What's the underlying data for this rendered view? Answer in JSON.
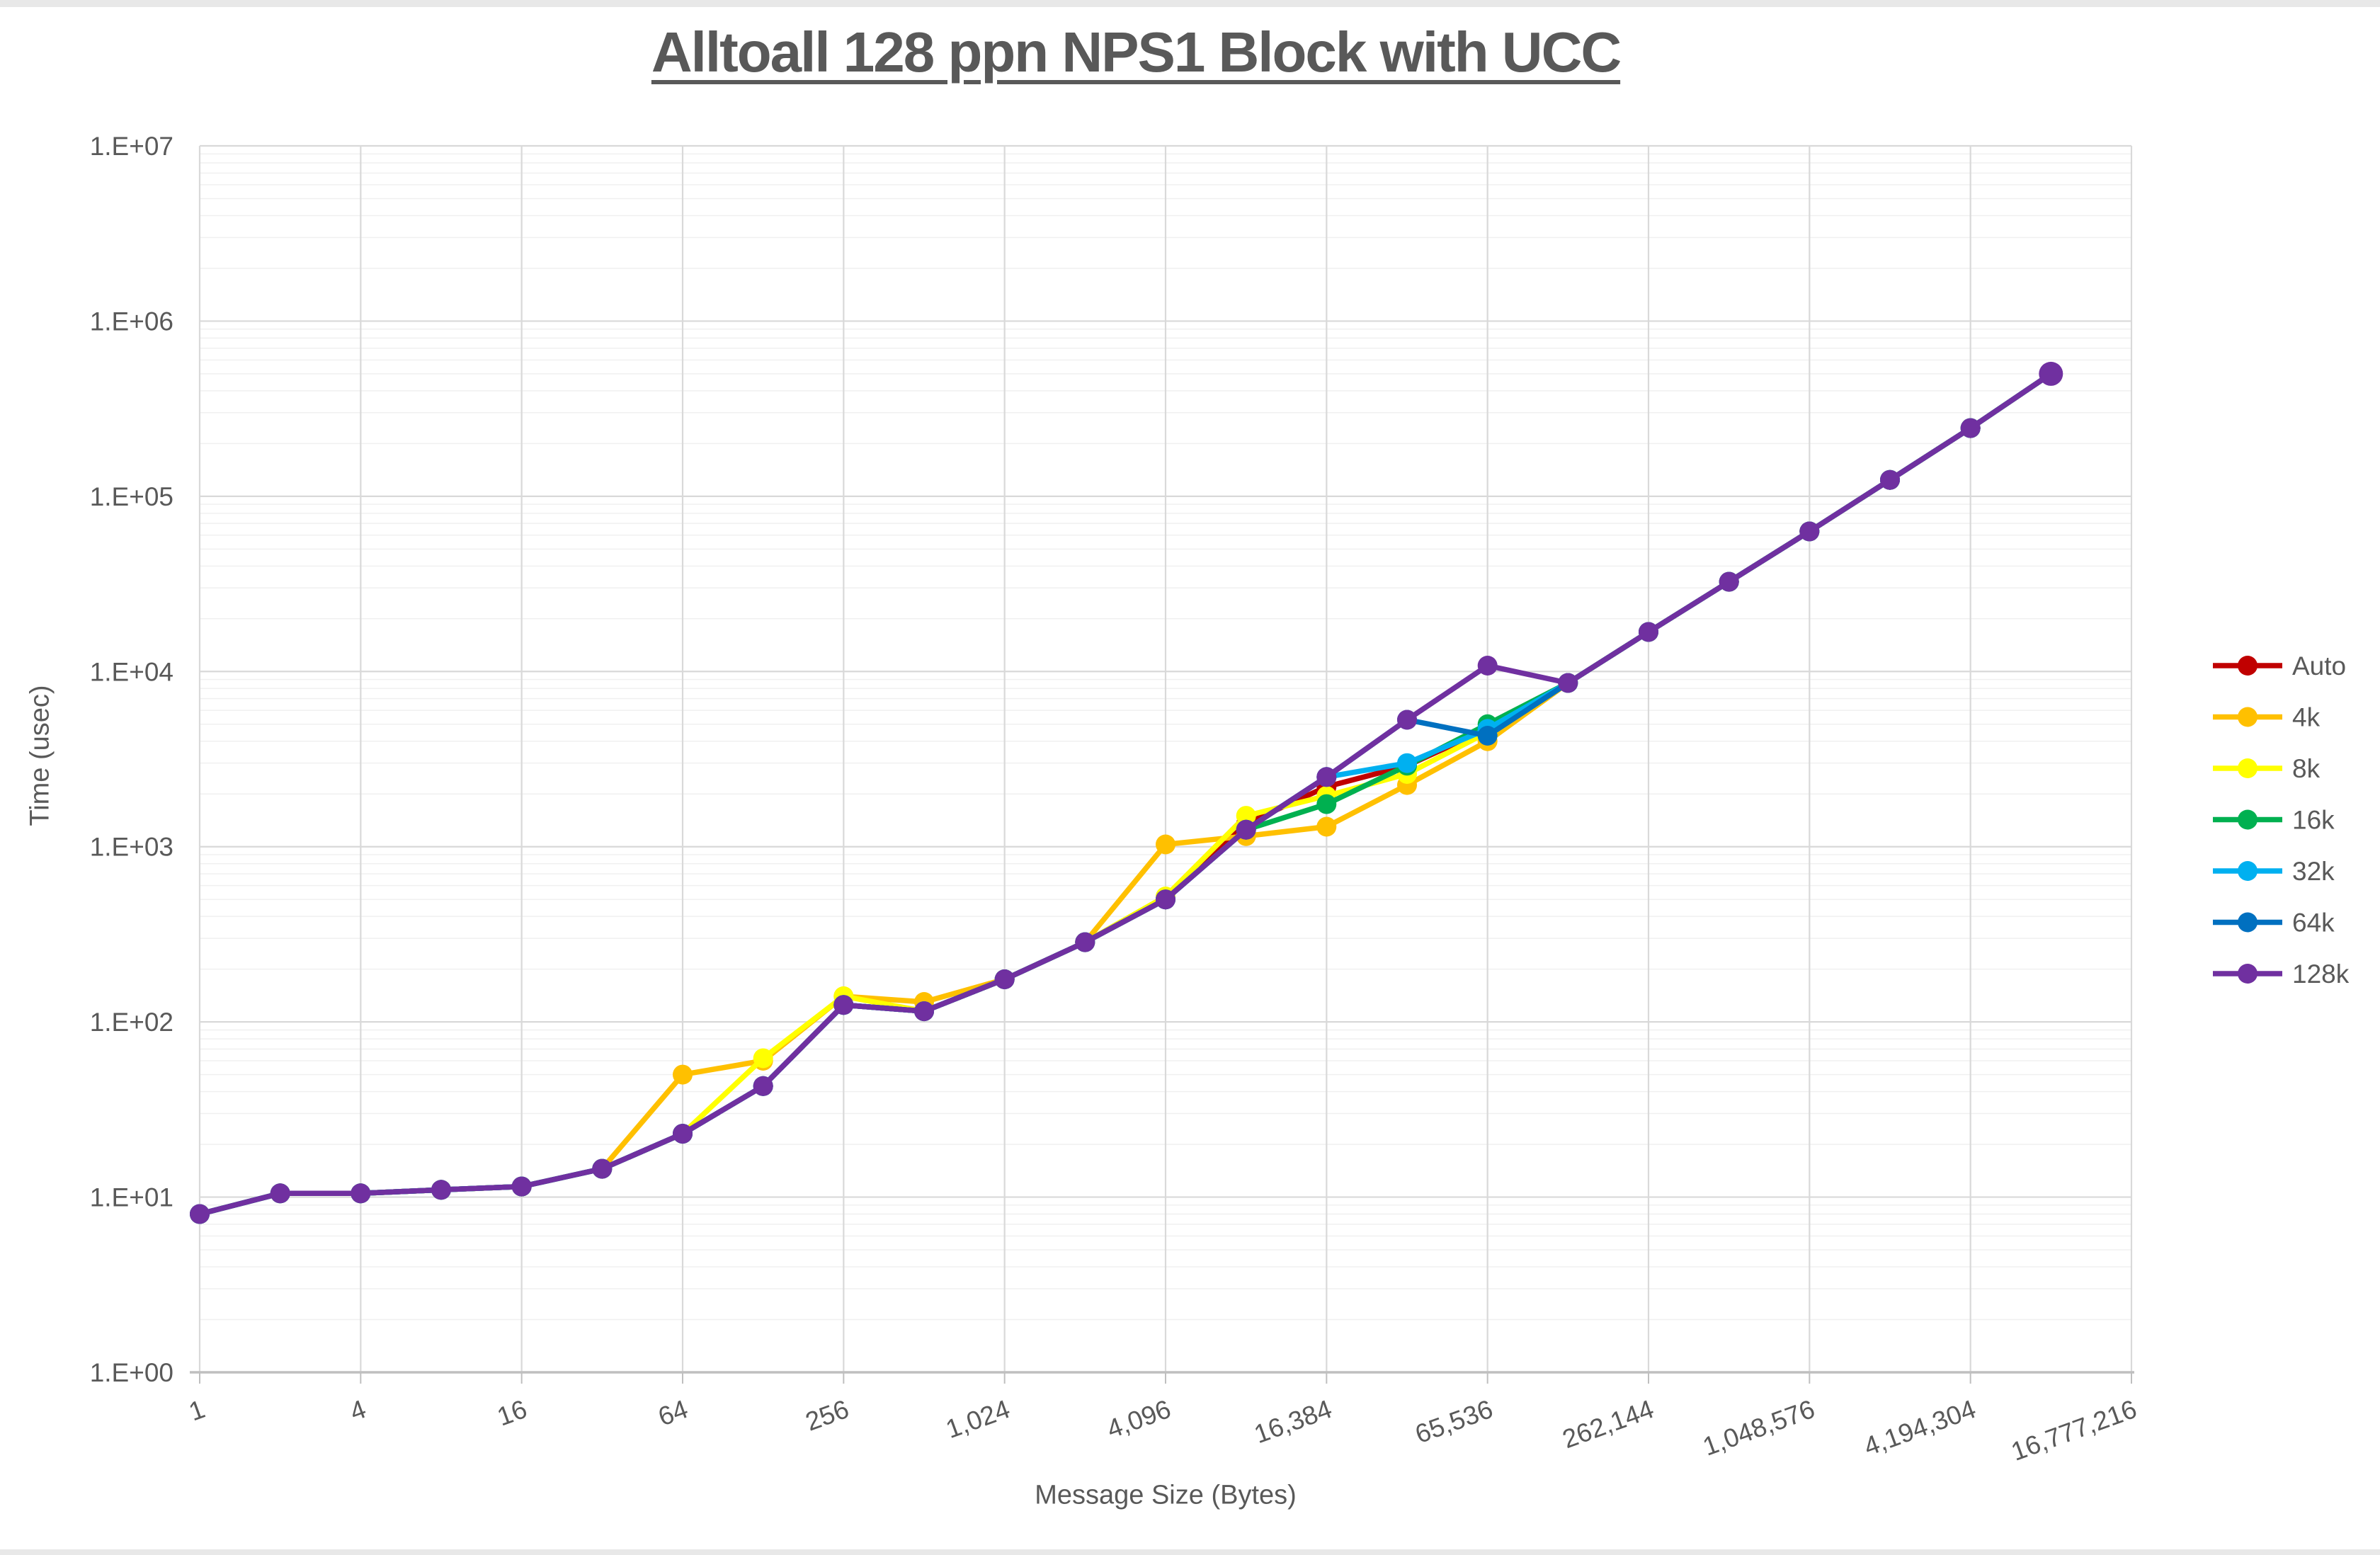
{
  "title": "Alltoall 128 ppn NPS1 Block with UCC",
  "chart_data": {
    "type": "line",
    "title": "Alltoall 128 ppn NPS1 Block with UCC",
    "xlabel": "Message Size (Bytes)",
    "ylabel": "Time (usec)",
    "x_scale": "log2",
    "y_scale": "log10",
    "x_range": [
      1,
      16777216
    ],
    "y_range": [
      1,
      10000000
    ],
    "grid": true,
    "legend_position": "right",
    "x_axis": {
      "label": "Message Size (Bytes)",
      "tick_values": [
        1,
        4,
        16,
        64,
        256,
        1024,
        4096,
        16384,
        65536,
        262144,
        1048576,
        4194304,
        16777216
      ],
      "tick_labels": [
        "1",
        "4",
        "16",
        "64",
        "256",
        "1,024",
        "4,096",
        "16,384",
        "65,536",
        "262,144",
        "1,048,576",
        "4,194,304",
        "16,777,216"
      ]
    },
    "y_axis": {
      "label": "Time (usec)",
      "tick_labels": [
        "1.E+00",
        "1.E+01",
        "1.E+02",
        "1.E+03",
        "1.E+04",
        "1.E+05",
        "1.E+06",
        "1.E+07"
      ],
      "tick_values": [
        1,
        10,
        100,
        1000,
        10000,
        100000,
        1000000,
        10000000
      ]
    },
    "x_values": [
      1,
      2,
      4,
      8,
      16,
      32,
      64,
      128,
      256,
      512,
      1024,
      2048,
      4096,
      8192,
      16384,
      32768,
      65536,
      131072,
      262144,
      524288,
      1048576,
      2097152,
      4194304,
      8388608
    ],
    "series": [
      {
        "name": "Auto",
        "color": "#C00000",
        "values": [
          8,
          10.5,
          10.5,
          11,
          11.5,
          14.5,
          23,
          43,
          125,
          115,
          175,
          285,
          500,
          1350,
          2200,
          2900,
          4700,
          8600,
          16800,
          32500,
          63000,
          124000,
          245000,
          500000
        ]
      },
      {
        "name": "4k",
        "color": "#FFC000",
        "values": [
          8,
          10.5,
          10.5,
          11,
          11.5,
          14.5,
          50,
          60,
          140,
          130,
          175,
          285,
          1030,
          1150,
          1300,
          2250,
          4000,
          8600,
          16800,
          32500,
          63000,
          124000,
          245000,
          500000
        ]
      },
      {
        "name": "8k",
        "color": "#FFFF00",
        "values": [
          8,
          10.5,
          10.5,
          11,
          11.5,
          14.5,
          23,
          62,
          140,
          115,
          175,
          285,
          520,
          1500,
          1950,
          2600,
          4500,
          8600,
          16800,
          32500,
          63000,
          124000,
          245000,
          500000
        ]
      },
      {
        "name": "16k",
        "color": "#00B050",
        "values": [
          8,
          10.5,
          10.5,
          11,
          11.5,
          14.5,
          23,
          43,
          125,
          115,
          175,
          285,
          500,
          1250,
          1750,
          2900,
          5000,
          8600,
          16800,
          32500,
          63000,
          124000,
          245000,
          500000
        ]
      },
      {
        "name": "32k",
        "color": "#00B0F0",
        "values": [
          8,
          10.5,
          10.5,
          11,
          11.5,
          14.5,
          23,
          43,
          125,
          115,
          175,
          285,
          500,
          1250,
          2500,
          3000,
          4700,
          8600,
          16800,
          32500,
          63000,
          124000,
          245000,
          500000
        ]
      },
      {
        "name": "64k",
        "color": "#0070C0",
        "values": [
          8,
          10.5,
          10.5,
          11,
          11.5,
          14.5,
          23,
          43,
          125,
          115,
          175,
          285,
          500,
          1250,
          2500,
          5300,
          4300,
          8600,
          16800,
          32500,
          63000,
          124000,
          245000,
          500000
        ]
      },
      {
        "name": "128k",
        "color": "#7030A0",
        "values": [
          8,
          10.5,
          10.5,
          11,
          11.5,
          14.5,
          23,
          43,
          125,
          115,
          175,
          285,
          500,
          1250,
          2500,
          5300,
          10800,
          8600,
          16800,
          32500,
          63000,
          124000,
          245000,
          500000
        ]
      }
    ],
    "style_colors": {
      "major_gridline": "#D9D9D9",
      "minor_gridline": "#F0F0F0",
      "axis_line": "#BFBFBF",
      "text": "#595959"
    }
  }
}
